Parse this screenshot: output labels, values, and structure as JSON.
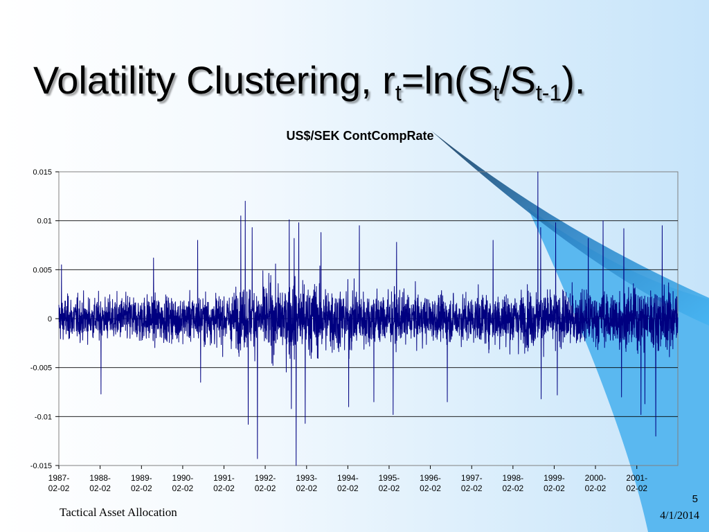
{
  "slide": {
    "title_main": "Volatility Clustering, ",
    "title_formula": {
      "r": "r",
      "r_sub": "t",
      "eq": "=ln(S",
      "s_sub": "t",
      "slash": "/S",
      "s_prev_sub": "t-1",
      "close": ")."
    },
    "footer_left": "Tactical Asset Allocation",
    "page_number": "5",
    "date": "4/1/2014",
    "colors": {
      "background_accent": "#5ab8f0",
      "swoosh_dark": "#1f5f8f",
      "series": "#000080"
    }
  },
  "chart_data": {
    "type": "line",
    "title": "US$/SEK ContCompRate",
    "xlabel": "",
    "ylabel": "",
    "ylim": [
      -0.015,
      0.015
    ],
    "yticks": [
      0.015,
      0.01,
      0.005,
      0,
      -0.005,
      -0.01,
      -0.015
    ],
    "ytick_labels": [
      "0.015",
      "0.01",
      "0.005",
      "0",
      "-0.005",
      "-0.01",
      "-0.015"
    ],
    "xticks": [
      [
        "1987-",
        "02-02"
      ],
      [
        "1988-",
        "02-02"
      ],
      [
        "1989-",
        "02-02"
      ],
      [
        "1990-",
        "02-02"
      ],
      [
        "1991-",
        "02-02"
      ],
      [
        "1992-",
        "02-02"
      ],
      [
        "1993-",
        "02-02"
      ],
      [
        "1994-",
        "02-02"
      ],
      [
        "1995-",
        "02-02"
      ],
      [
        "1996-",
        "02-02"
      ],
      [
        "1997-",
        "02-02"
      ],
      [
        "1998-",
        "02-02"
      ],
      [
        "1999-",
        "02-02"
      ],
      [
        "2000-",
        "02-02"
      ],
      [
        "2001-",
        "02-02"
      ]
    ],
    "x_range": [
      "1987-02-02",
      "2002-01-31"
    ],
    "grid": true,
    "legend": "none",
    "series": [
      {
        "color": "#000080",
        "observations_approx": 3760,
        "amplitude_profile_by_year": [
          0.0025,
          0.0024,
          0.0028,
          0.0026,
          0.0029,
          0.0041,
          0.0044,
          0.0037,
          0.0031,
          0.0026,
          0.0028,
          0.0033,
          0.0032,
          0.0031,
          0.0036
        ],
        "spikes": [
          {
            "date": "1987-02-25",
            "value": 0.0055
          },
          {
            "date": "1988-02-10",
            "value": -0.0077
          },
          {
            "date": "1989-05-20",
            "value": 0.0062
          },
          {
            "date": "1990-06-15",
            "value": 0.008
          },
          {
            "date": "1990-07-10",
            "value": -0.0065
          },
          {
            "date": "1991-07-01",
            "value": 0.0105
          },
          {
            "date": "1991-08-10",
            "value": 0.012
          },
          {
            "date": "1991-09-05",
            "value": -0.0108
          },
          {
            "date": "1991-10-10",
            "value": 0.0093
          },
          {
            "date": "1991-11-25",
            "value": -0.0143
          },
          {
            "date": "1992-09-01",
            "value": 0.0101
          },
          {
            "date": "1992-09-20",
            "value": -0.0092
          },
          {
            "date": "1992-10-15",
            "value": 0.0082
          },
          {
            "date": "1992-11-01",
            "value": -0.015
          },
          {
            "date": "1992-11-25",
            "value": 0.0098
          },
          {
            "date": "1993-01-20",
            "value": -0.0107
          },
          {
            "date": "1993-06-10",
            "value": 0.0088
          },
          {
            "date": "1994-02-10",
            "value": -0.009
          },
          {
            "date": "1994-05-15",
            "value": 0.0095
          },
          {
            "date": "1994-09-20",
            "value": -0.0085
          },
          {
            "date": "1995-03-10",
            "value": -0.0098
          },
          {
            "date": "1995-04-10",
            "value": 0.0078
          },
          {
            "date": "1996-07-01",
            "value": -0.0085
          },
          {
            "date": "1997-08-10",
            "value": 0.008
          },
          {
            "date": "1998-09-10",
            "value": 0.015
          },
          {
            "date": "1998-10-05",
            "value": 0.0093
          },
          {
            "date": "1998-10-10",
            "value": -0.0082
          },
          {
            "date": "1999-02-15",
            "value": 0.0098
          },
          {
            "date": "1999-03-01",
            "value": -0.0078
          },
          {
            "date": "1999-12-01",
            "value": 0.0082
          },
          {
            "date": "2000-04-10",
            "value": 0.01
          },
          {
            "date": "2000-09-20",
            "value": -0.008
          },
          {
            "date": "2000-10-10",
            "value": 0.0092
          },
          {
            "date": "2001-03-10",
            "value": -0.0098
          },
          {
            "date": "2001-04-15",
            "value": -0.0087
          },
          {
            "date": "2001-07-20",
            "value": -0.012
          },
          {
            "date": "2001-09-15",
            "value": 0.0095
          }
        ]
      }
    ]
  }
}
